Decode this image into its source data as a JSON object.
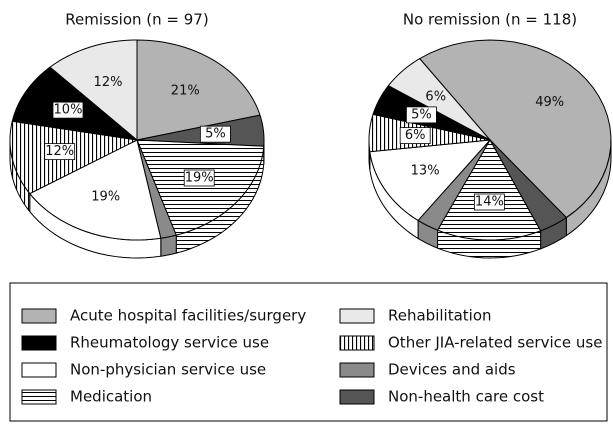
{
  "chart_data": [
    {
      "type": "pie",
      "title": "Remission (n = 97)",
      "categories": [
        "Acute hospital facilities/surgery",
        "Non-health care cost",
        "Medication",
        "Devices and aids",
        "Non-physician service use",
        "Other JIA-related service use",
        "Rheumatology service use",
        "Rehabilitation"
      ],
      "values": [
        21,
        5,
        19,
        2,
        19,
        12,
        10,
        12
      ],
      "value_labels": [
        "21%",
        "5%",
        "19%",
        null,
        "19%",
        "12%",
        "10%",
        "12%"
      ],
      "colors": [
        "#b3b3b3",
        "#555555",
        "#ffffff",
        "#8a8a8a",
        "#ffffff",
        "#ffffff",
        "#000000",
        "#e9e9e9"
      ],
      "patterns": [
        null,
        null,
        "horizontal",
        null,
        null,
        "vertical",
        null,
        null
      ]
    },
    {
      "type": "pie",
      "title": "No remission (n = 118)",
      "categories": [
        "Acute hospital facilities/surgery",
        "Non-health care cost",
        "Medication",
        "Devices and aids",
        "Non-physician service use",
        "Other JIA-related service use",
        "Rheumatology service use",
        "Rehabilitation"
      ],
      "values": [
        49,
        4,
        14,
        3,
        13,
        6,
        5,
        6
      ],
      "value_labels": [
        "49%",
        null,
        "14%",
        null,
        "13%",
        "6%",
        "5%",
        "6%"
      ],
      "colors": [
        "#b3b3b3",
        "#555555",
        "#ffffff",
        "#8a8a8a",
        "#ffffff",
        "#ffffff",
        "#000000",
        "#e9e9e9"
      ],
      "patterns": [
        null,
        null,
        "horizontal",
        null,
        null,
        "vertical",
        null,
        null
      ]
    }
  ]
}
